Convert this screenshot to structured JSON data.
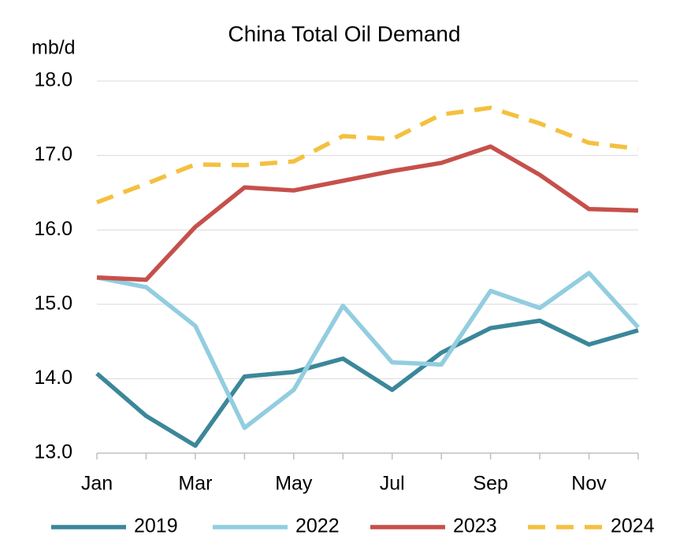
{
  "chart_data": {
    "type": "line",
    "title": "China Total Oil Demand",
    "y_label": "mb/d",
    "categories": [
      "Jan",
      null,
      "Mar",
      null,
      "May",
      null,
      "Jul",
      null,
      "Sep",
      null,
      "Nov",
      null
    ],
    "series": [
      {
        "name": "2019",
        "color": "#3b8799",
        "dashed": false,
        "values": [
          14.07,
          13.5,
          13.1,
          14.03,
          14.09,
          14.27,
          13.85,
          14.35,
          14.68,
          14.78,
          14.46,
          14.65
        ]
      },
      {
        "name": "2022",
        "color": "#92cde0",
        "dashed": false,
        "values": [
          15.36,
          15.23,
          14.71,
          13.34,
          13.85,
          14.98,
          14.22,
          14.19,
          15.18,
          14.95,
          15.42,
          14.69
        ]
      },
      {
        "name": "2023",
        "color": "#c6504b",
        "dashed": false,
        "values": [
          15.36,
          15.33,
          16.04,
          16.57,
          16.53,
          16.66,
          16.79,
          16.9,
          17.12,
          16.74,
          16.28,
          16.26
        ]
      },
      {
        "name": "2024",
        "color": "#f4c03f",
        "dashed": true,
        "values": [
          16.37,
          16.62,
          16.88,
          16.87,
          16.92,
          17.26,
          17.22,
          17.55,
          17.64,
          17.43,
          17.17,
          17.09
        ]
      }
    ],
    "ylim": [
      13,
      18
    ],
    "yticks": [
      {
        "value": 13,
        "label": "13.0"
      },
      {
        "value": 14,
        "label": "14.0"
      },
      {
        "value": 15,
        "label": "15.0"
      },
      {
        "value": 16,
        "label": "16.0"
      },
      {
        "value": 17,
        "label": "17.0"
      },
      {
        "value": 18,
        "label": "18.0"
      }
    ],
    "grid": true,
    "legend": "bottom"
  }
}
